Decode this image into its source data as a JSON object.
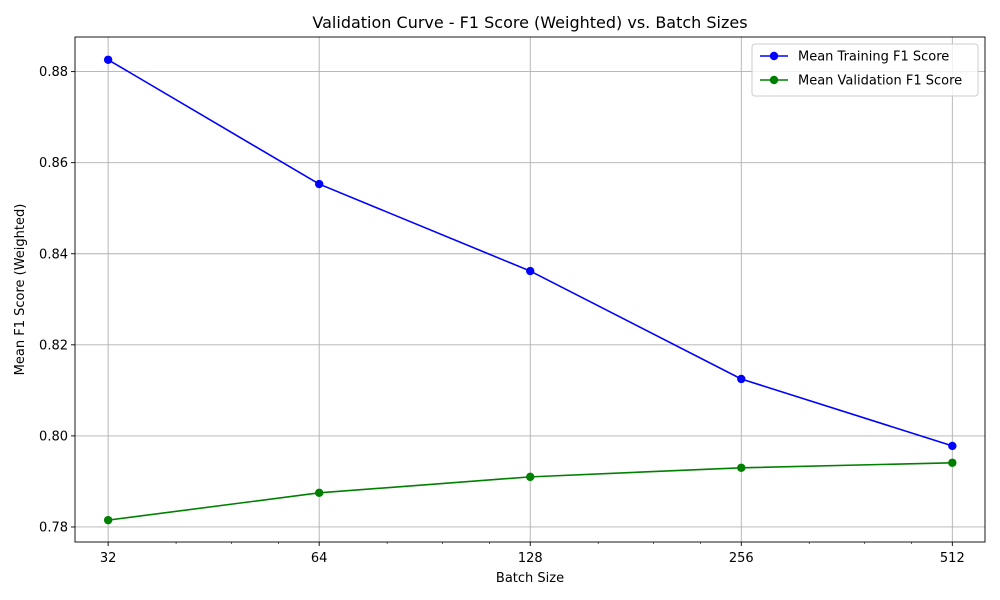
{
  "chart_data": {
    "type": "line",
    "title": "Validation Curve - F1 Score (Weighted) vs. Batch Sizes",
    "xlabel": "Batch Size",
    "ylabel": "Mean F1 Score (Weighted)",
    "x_scale": "log2",
    "x": [
      32,
      64,
      128,
      256,
      512
    ],
    "x_tick_labels": [
      "32",
      "64",
      "128",
      "256",
      "512"
    ],
    "xlim": [
      28.7,
      570
    ],
    "ylim": [
      0.7767,
      0.8876
    ],
    "y_ticks": [
      0.78,
      0.8,
      0.82,
      0.84,
      0.86,
      0.88
    ],
    "y_tick_labels": [
      "0.78",
      "0.80",
      "0.82",
      "0.84",
      "0.86",
      "0.88"
    ],
    "grid": true,
    "legend_position": "upper-right",
    "series": [
      {
        "name": "Mean Training F1 Score",
        "color": "#0000ff",
        "marker": "circle",
        "values": [
          0.8826,
          0.8553,
          0.8362,
          0.8125,
          0.7978
        ]
      },
      {
        "name": "Mean Validation F1 Score",
        "color": "#008000",
        "marker": "circle",
        "values": [
          0.7815,
          0.7875,
          0.791,
          0.793,
          0.7941
        ]
      }
    ]
  }
}
